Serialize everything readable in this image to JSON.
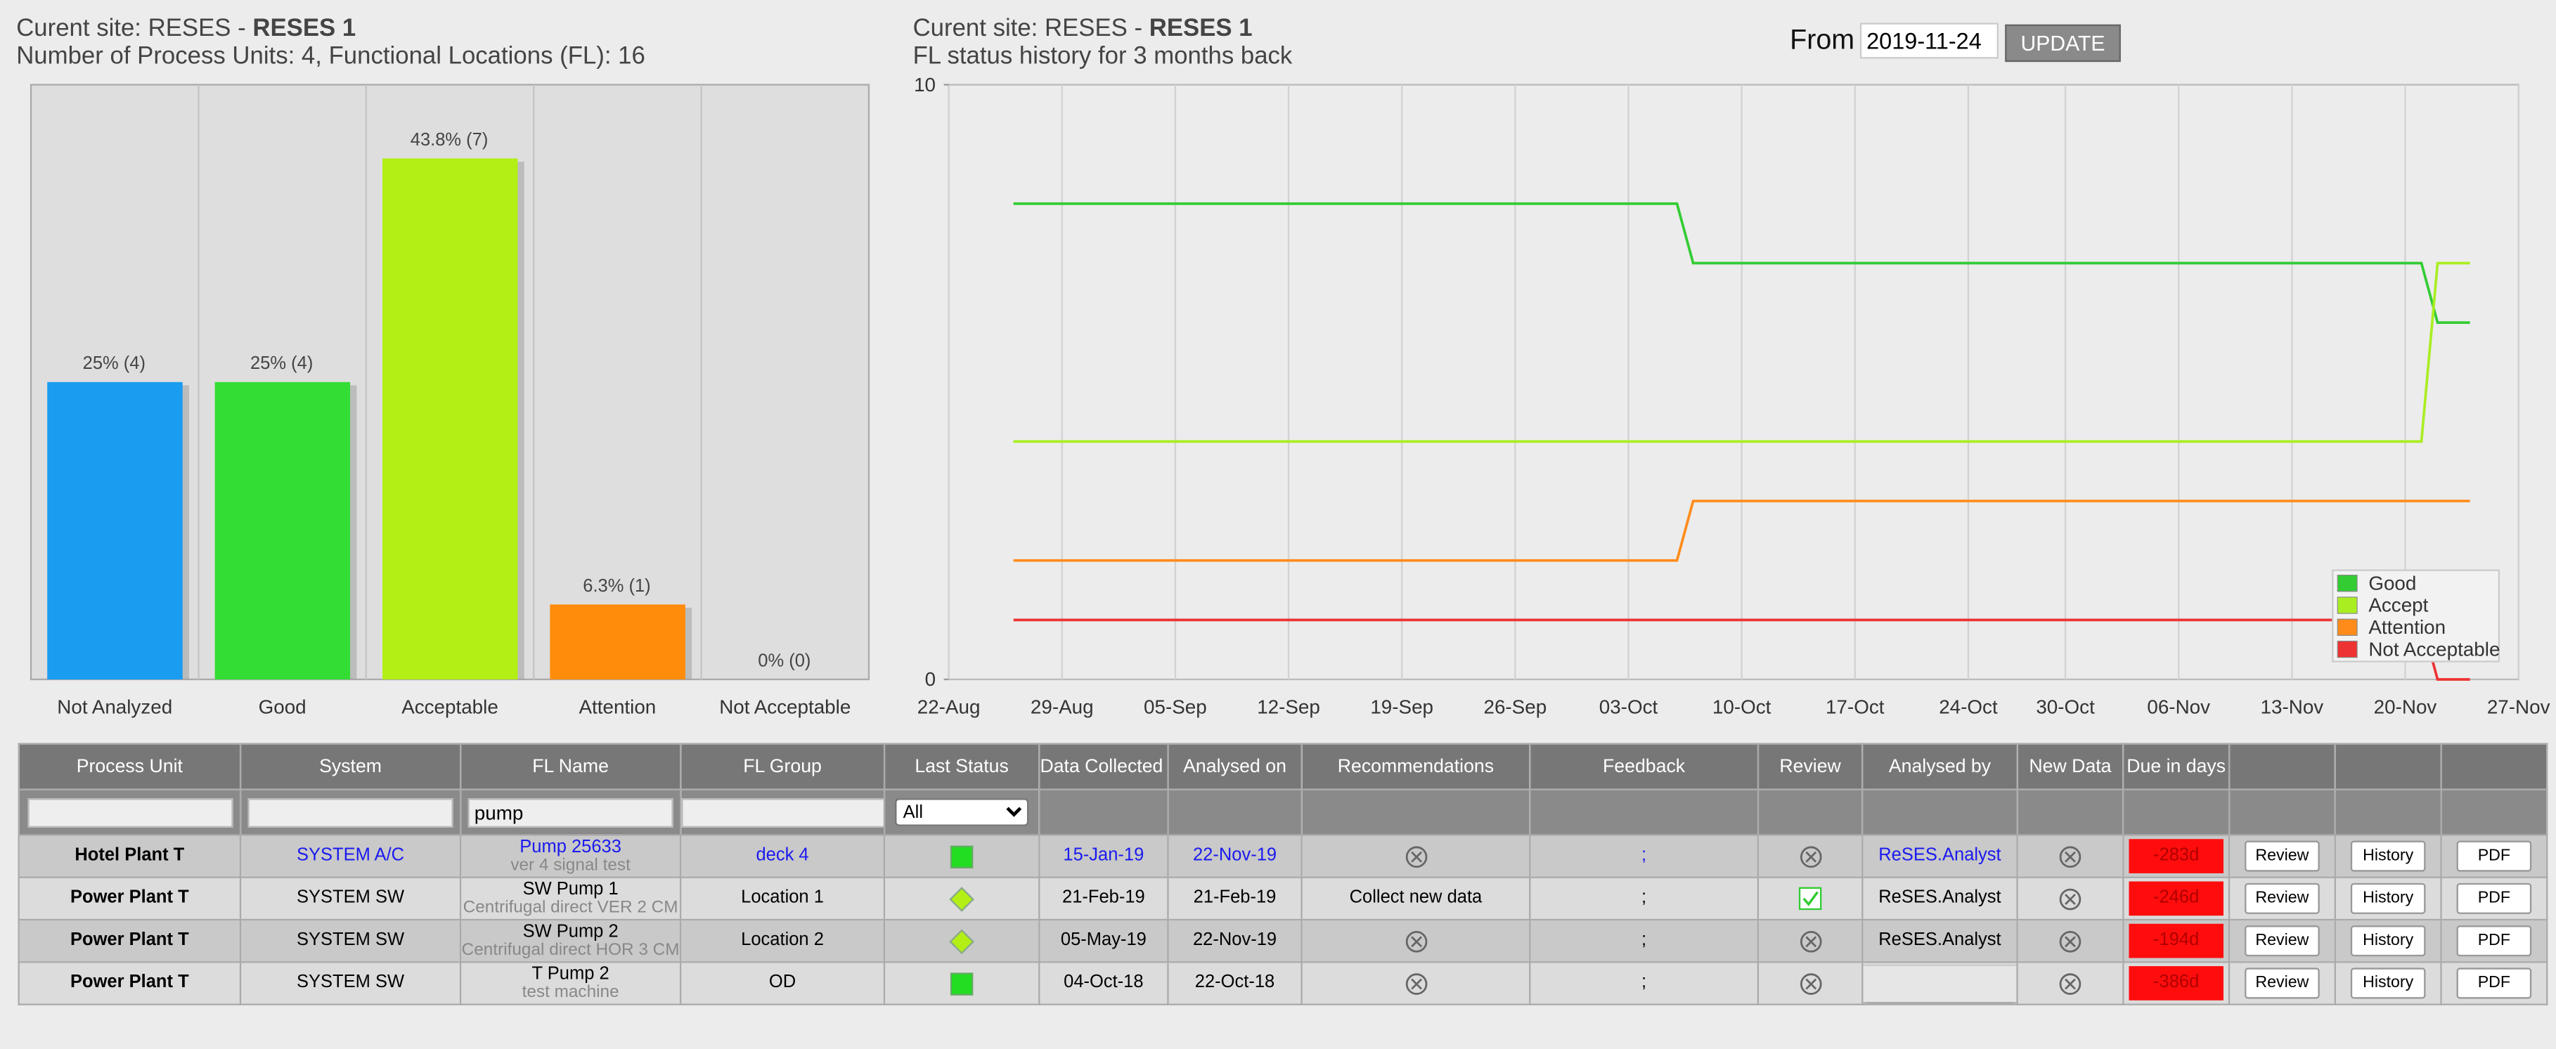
{
  "header": {
    "site_label": "Curent site: RESES -",
    "site_name": "RESES 1",
    "summary": "Number of Process Units: 4, Functional Locations (FL): 16",
    "history_title": "FL status history for 3 months back"
  },
  "controls": {
    "from_label": "From",
    "from_date": "2019-11-24",
    "button": "UPDATE"
  },
  "chart_data": [
    {
      "type": "bar",
      "categories": [
        "Not Analyzed",
        "Good",
        "Acceptable",
        "Attention",
        "Not Acceptable"
      ],
      "values": [
        25,
        25,
        43.8,
        6.3,
        0
      ],
      "value_labels": [
        "25% (4)",
        "25% (4)",
        "43.8% (7)",
        "6.3% (1)",
        "0% (0)"
      ],
      "colors": [
        "#1a9cf0",
        "#33dd33",
        "#b3ef14",
        "#ff8c0a",
        "#999999"
      ],
      "ylim": [
        0,
        50
      ]
    },
    {
      "type": "line",
      "xlim": [
        "22-Aug",
        "27-Nov"
      ],
      "xticks": [
        "22-Aug",
        "29-Aug",
        "05-Sep",
        "12-Sep",
        "19-Sep",
        "26-Sep",
        "03-Oct",
        "10-Oct",
        "17-Oct",
        "24-Oct",
        "30-Oct",
        "06-Nov",
        "13-Nov",
        "20-Nov",
        "27-Nov"
      ],
      "ylim": [
        0,
        10
      ],
      "yticks": [
        0,
        10
      ],
      "grid": true,
      "legend": "lower right",
      "series": [
        {
          "name": "Good",
          "color": "#33cc33",
          "x": [
            "26-Aug",
            "06-Oct",
            "07-Oct",
            "21-Nov",
            "22-Nov",
            "24-Nov"
          ],
          "values": [
            8,
            8,
            7,
            7,
            6,
            6
          ]
        },
        {
          "name": "Accept",
          "color": "#aaee22",
          "x": [
            "26-Aug",
            "21-Nov",
            "22-Nov",
            "24-Nov"
          ],
          "values": [
            4,
            4,
            7,
            7
          ]
        },
        {
          "name": "Attention",
          "color": "#ff8c1a",
          "x": [
            "26-Aug",
            "06-Oct",
            "07-Oct",
            "24-Nov"
          ],
          "values": [
            2,
            2,
            3,
            3
          ]
        },
        {
          "name": "Not Acceptable",
          "color": "#ee3333",
          "x": [
            "26-Aug",
            "21-Nov",
            "22-Nov",
            "24-Nov"
          ],
          "values": [
            1,
            1,
            0,
            0
          ]
        }
      ]
    }
  ],
  "table": {
    "columns": [
      "Process Unit",
      "System",
      "FL Name",
      "FL Group",
      "Last Status",
      "Data Collected on",
      "Analysed on",
      "Recommendations",
      "Feedback",
      "Review",
      "Analysed by",
      "New Data",
      "Due in days"
    ],
    "filters": {
      "fl_name": "pump",
      "last_status": "All"
    },
    "buttons": [
      "Review",
      "History",
      "PDF"
    ],
    "rows": [
      {
        "process_unit": "Hotel Plant T",
        "system": "SYSTEM A/C",
        "fl_name": "Pump 25633",
        "fl_desc": "ver 4 signal test",
        "fl_group": "deck 4",
        "status": {
          "shape": "square",
          "color": "#22dd22"
        },
        "data_collected": "15-Jan-19",
        "analysed_on": "22-Nov-19",
        "recommendation": null,
        "feedback": ";",
        "reviewed": false,
        "analysed_by": "ReSES.Analyst",
        "due": "-283d",
        "link": true
      },
      {
        "process_unit": "Power Plant T",
        "system": "SYSTEM SW",
        "fl_name": "SW Pump 1",
        "fl_desc": "Centrifugal direct VER 2 CM",
        "fl_group": "Location 1",
        "status": {
          "shape": "diamond",
          "color": "#b3ef14"
        },
        "data_collected": "21-Feb-19",
        "analysed_on": "21-Feb-19",
        "recommendation": "Collect new data",
        "feedback": ";",
        "reviewed": true,
        "analysed_by": "ReSES.Analyst",
        "due": "-246d",
        "link": false
      },
      {
        "process_unit": "Power Plant T",
        "system": "SYSTEM SW",
        "fl_name": "SW Pump 2",
        "fl_desc": "Centrifugal direct HOR 3 CM",
        "fl_group": "Location 2",
        "status": {
          "shape": "diamond",
          "color": "#b3ef14"
        },
        "data_collected": "05-May-19",
        "analysed_on": "22-Nov-19",
        "recommendation": null,
        "feedback": ";",
        "reviewed": false,
        "analysed_by": "ReSES.Analyst",
        "due": "-194d",
        "link": false
      },
      {
        "process_unit": "Power Plant T",
        "system": "SYSTEM SW",
        "fl_name": "T Pump 2",
        "fl_desc": "test machine",
        "fl_group": "OD",
        "status": {
          "shape": "square",
          "color": "#22dd22"
        },
        "data_collected": "04-Oct-18",
        "analysed_on": "22-Oct-18",
        "recommendation": null,
        "feedback": ";",
        "reviewed": false,
        "analysed_by": null,
        "due": "-386d",
        "link": false
      }
    ]
  }
}
